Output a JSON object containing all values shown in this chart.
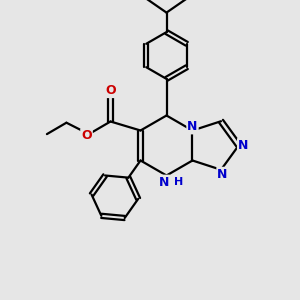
{
  "background_color": "#e6e6e6",
  "bond_color": "#000000",
  "nitrogen_color": "#0000cc",
  "oxygen_color": "#cc0000",
  "bond_width": 1.6,
  "fig_size": [
    3.0,
    3.0
  ],
  "dpi": 100,
  "xlim": [
    0,
    10
  ],
  "ylim": [
    0,
    10
  ]
}
